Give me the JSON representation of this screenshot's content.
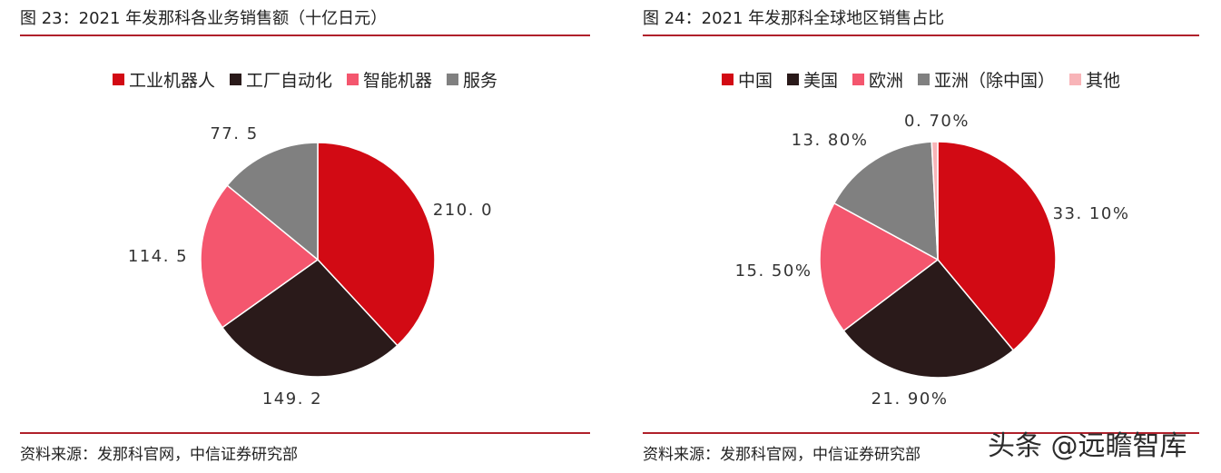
{
  "figures": [
    {
      "title": "图 23：2021 年发那科各业务销售额（十亿日元）",
      "source": "资料来源：发那科官网，中信证券研究部"
    },
    {
      "title": "图 24：2021 年发那科全球地区销售占比",
      "source": "资料来源：发那科官网，中信证券研究部"
    }
  ],
  "watermark": "头条 @远瞻智库",
  "chart_data": [
    {
      "type": "pie",
      "title": "",
      "categories": [
        "工业机器人",
        "工厂自动化",
        "智能机器",
        "服务"
      ],
      "values": [
        210.0,
        149.2,
        114.5,
        77.5
      ],
      "labels": [
        "210. 0",
        "149. 2",
        "114. 5",
        "77. 5"
      ],
      "colors": [
        "#d20a14",
        "#2a1a1a",
        "#f4566e",
        "#808080"
      ],
      "legend": "top"
    },
    {
      "type": "pie",
      "title": "",
      "categories": [
        "中国",
        "美国",
        "欧洲",
        "亚洲（除中国）",
        "其他"
      ],
      "values": [
        33.1,
        21.9,
        15.5,
        13.8,
        0.7
      ],
      "labels": [
        "33. 10%",
        "21. 90%",
        "15. 50%",
        "13. 80%",
        "0. 70%"
      ],
      "colors": [
        "#d20a14",
        "#2a1a1a",
        "#f4566e",
        "#808080",
        "#f8b4b8"
      ],
      "legend": "top"
    }
  ]
}
